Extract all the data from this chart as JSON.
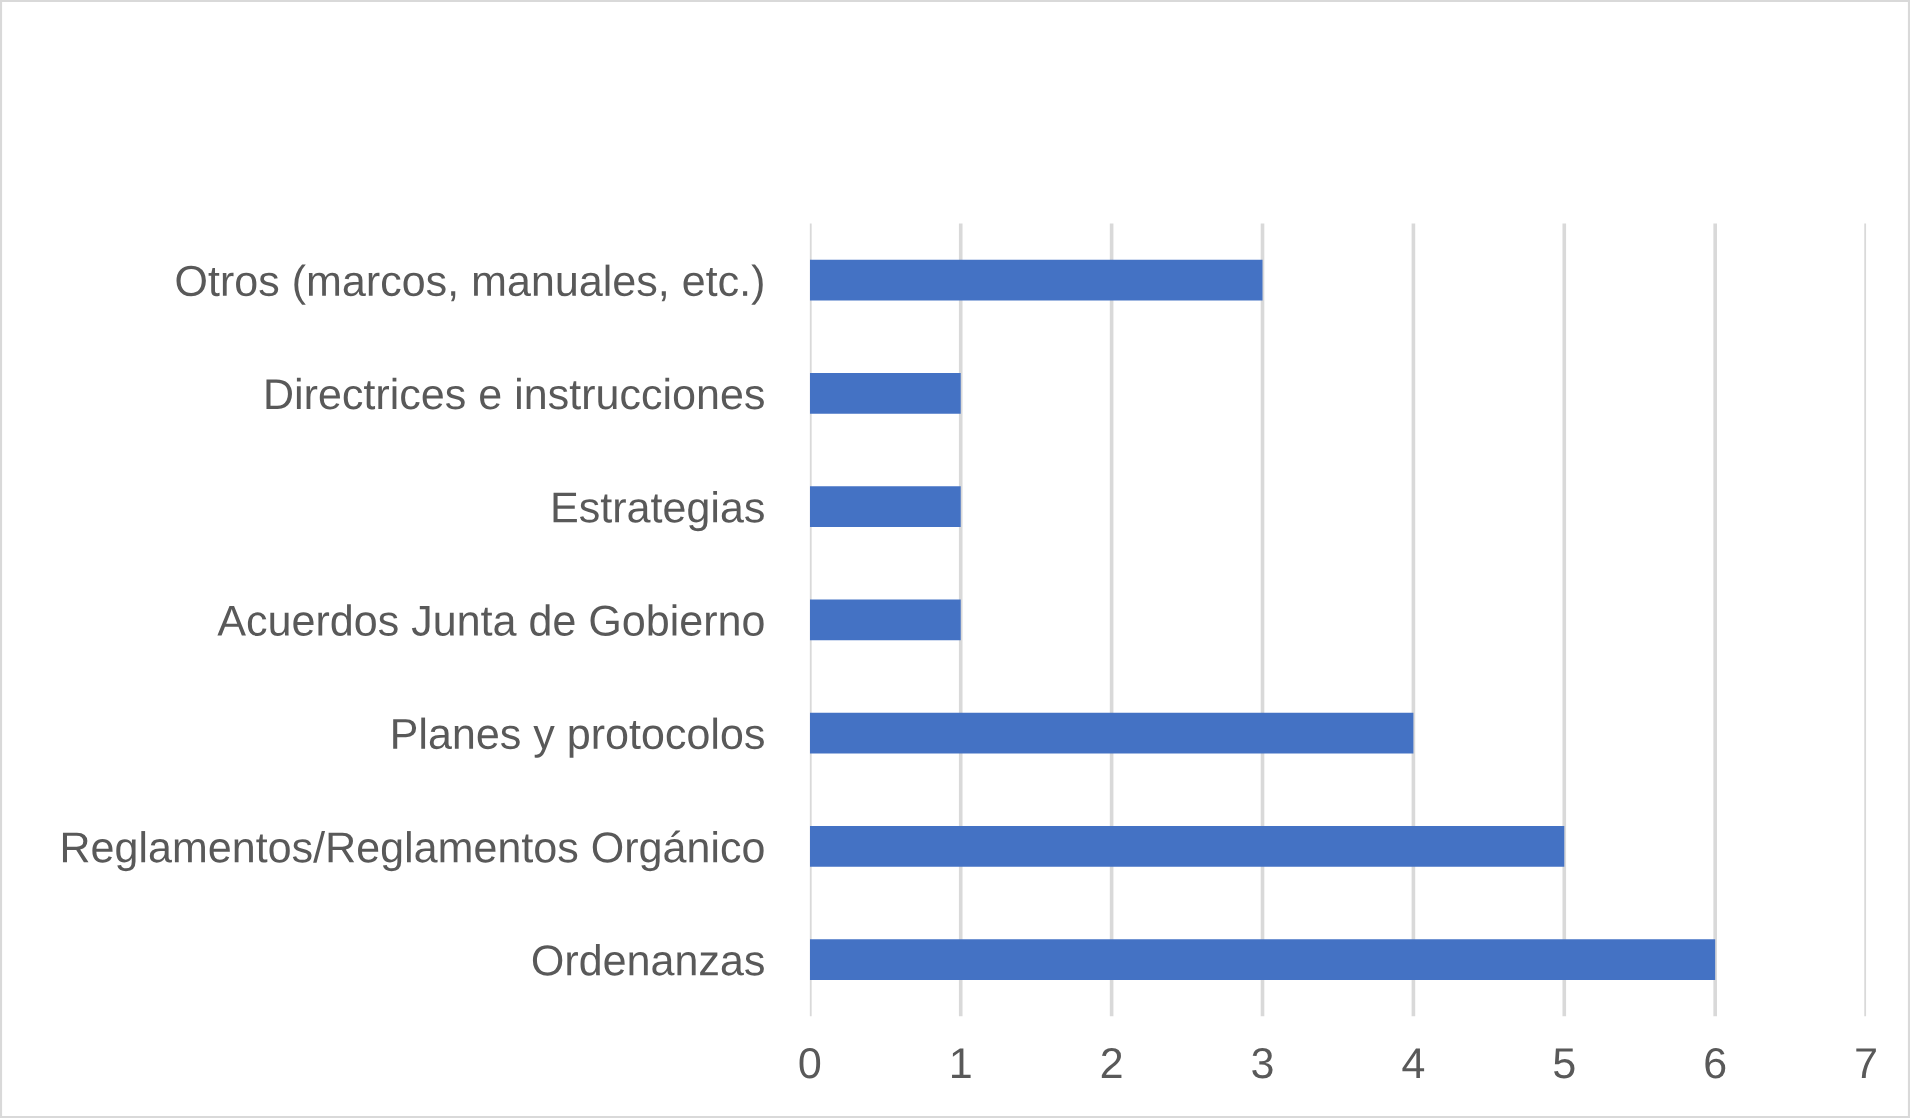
{
  "chart_data": {
    "type": "bar",
    "orientation": "horizontal",
    "categories": [
      "Otros (marcos, manuales, etc.)",
      "Directrices e instrucciones",
      "Estrategias",
      "Acuerdos Junta de Gobierno",
      "Planes y protocolos",
      "Reglamentos/Reglamentos Orgánico",
      "Ordenanzas"
    ],
    "values": [
      3,
      1,
      1,
      1,
      4,
      5,
      6
    ],
    "color": "#4472c4",
    "xlim": [
      0,
      7
    ],
    "xticks": [
      0,
      1,
      2,
      3,
      4,
      5,
      6,
      7
    ],
    "grid": "x",
    "legend": false
  }
}
